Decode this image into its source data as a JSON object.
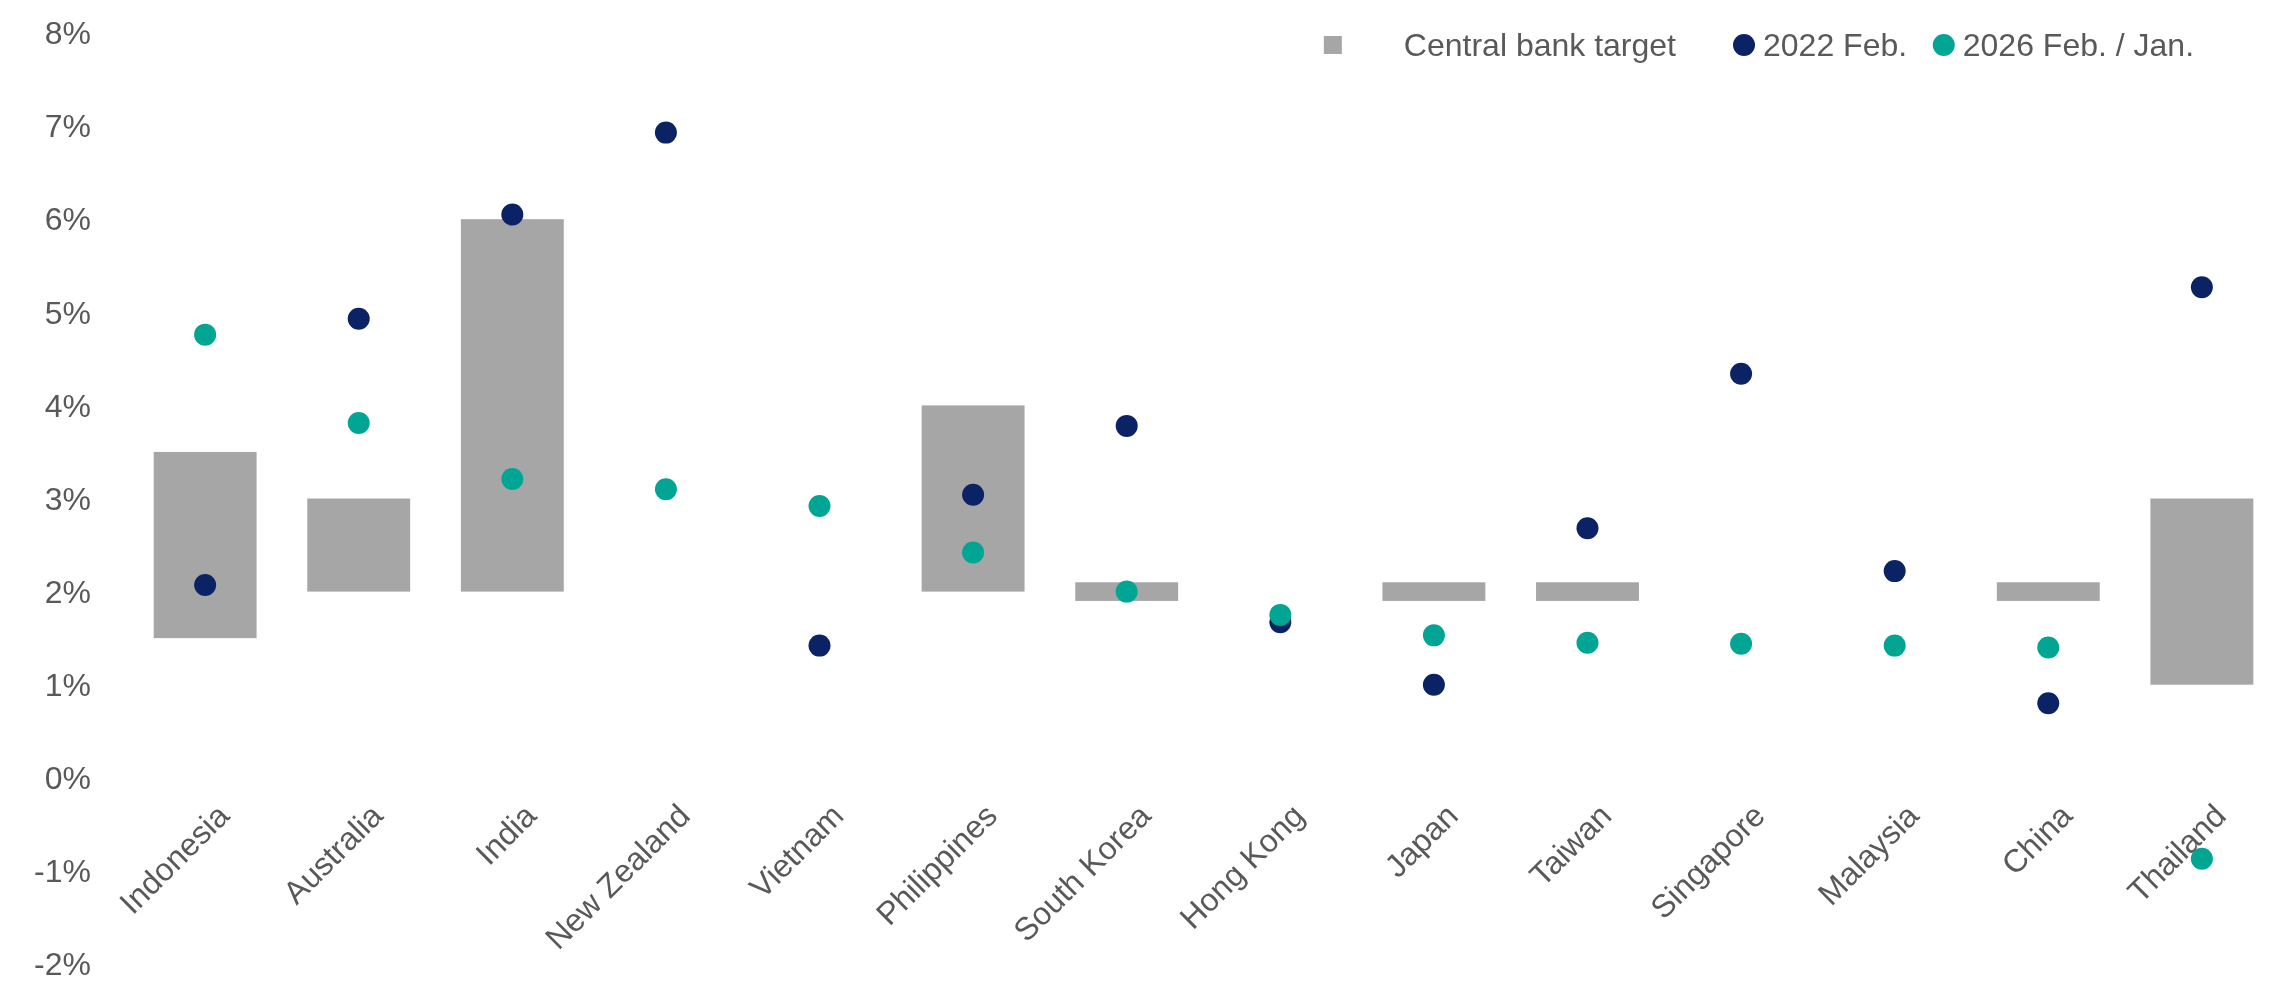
{
  "chart_data": {
    "type": "bar",
    "categories": [
      "Indonesia",
      "Australia",
      "India",
      "New Zealand",
      "Vietnam",
      "Philippines",
      "South Korea",
      "Hong Kong",
      "Japan",
      "Taiwan",
      "Singapore",
      "Malaysia",
      "China",
      "Thailand"
    ],
    "series": [
      {
        "name": "Central bank target",
        "color": "#a6a6a6",
        "values": [
          2,
          1,
          4,
          null,
          null,
          2,
          0.2,
          null,
          0.2,
          0.2,
          null,
          null,
          0.2,
          2
        ],
        "base": [
          1.5,
          2,
          2,
          null,
          null,
          2,
          1.9,
          null,
          1.9,
          1.9,
          null,
          null,
          1.9,
          1
        ]
      },
      {
        "name": "2022 Feb.",
        "type": "scatter",
        "color": "#0b2265",
        "values": [
          2.07,
          4.93,
          6.05,
          6.93,
          1.42,
          3.04,
          3.78,
          1.67,
          1.0,
          2.68,
          4.34,
          2.22,
          0.8,
          5.27
        ]
      },
      {
        "name": "2026 Feb. / Jan.",
        "type": "scatter",
        "color": "#00a693",
        "values": [
          4.76,
          3.81,
          3.21,
          3.1,
          2.92,
          2.42,
          2.0,
          1.75,
          1.53,
          1.45,
          1.44,
          1.42,
          1.4,
          -0.87
        ]
      }
    ],
    "ylim": [
      -2,
      8
    ],
    "yticks": [
      {
        "value": -2,
        "label": "-2%"
      },
      {
        "value": -1,
        "label": "-1%"
      },
      {
        "value": 0,
        "label": "0%"
      },
      {
        "value": 1,
        "label": "1%"
      },
      {
        "value": 2,
        "label": "2%"
      },
      {
        "value": 3,
        "label": "3%"
      },
      {
        "value": 4,
        "label": "4%"
      },
      {
        "value": 5,
        "label": "5%"
      },
      {
        "value": 6,
        "label": "6%"
      },
      {
        "value": 7,
        "label": "7%"
      },
      {
        "value": 8,
        "label": "8%"
      }
    ],
    "legend": "top right",
    "marker": "circle",
    "grid": false
  }
}
